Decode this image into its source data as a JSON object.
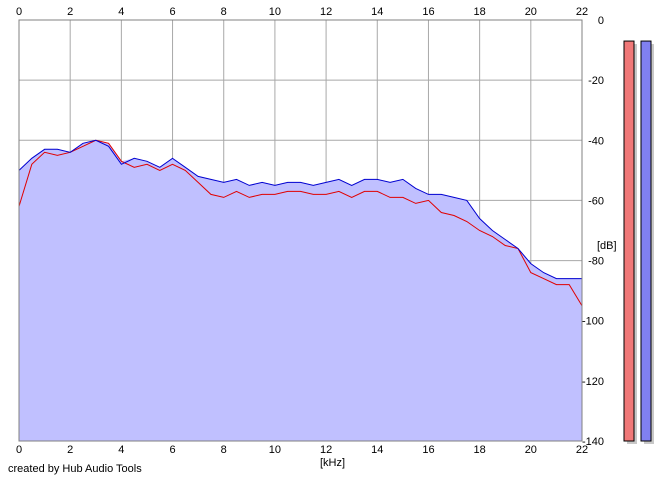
{
  "chart_data": {
    "type": "area",
    "xlabel": "[kHz]",
    "ylabel": "[dB]",
    "xlim": [
      0,
      22
    ],
    "ylim": [
      -140,
      0
    ],
    "xticks": [
      0,
      2,
      4,
      6,
      8,
      10,
      12,
      14,
      16,
      18,
      20,
      22
    ],
    "yticks": [
      0,
      -20,
      -40,
      -60,
      -80,
      -100,
      -120,
      -140
    ],
    "ytick_labels": [
      "0",
      "-20",
      "-40",
      "-60",
      "-80",
      "-100",
      "-120",
      "-140"
    ],
    "grid": true,
    "fill_color": "#c0c0ff",
    "series": [
      {
        "color": "#e00000",
        "x": [
          0,
          0.5,
          1,
          1.5,
          2,
          2.5,
          3,
          3.5,
          4,
          4.5,
          5,
          5.5,
          6,
          6.5,
          7,
          7.5,
          8,
          8.5,
          9,
          9.5,
          10,
          10.5,
          11,
          11.5,
          12,
          12.5,
          13,
          13.5,
          14,
          14.5,
          15,
          15.5,
          16,
          16.5,
          17,
          17.5,
          18,
          18.5,
          19,
          19.5,
          20,
          20.5,
          21,
          21.5,
          22
        ],
        "values": [
          -62,
          -48,
          -44,
          -45,
          -44,
          -42,
          -40,
          -41,
          -47,
          -49,
          -48,
          -50,
          -48,
          -50,
          -54,
          -58,
          -59,
          -57,
          -59,
          -58,
          -58,
          -57,
          -57,
          -58,
          -58,
          -57,
          -59,
          -57,
          -57,
          -59,
          -59,
          -61,
          -60,
          -64,
          -65,
          -67,
          -70,
          -72,
          -75,
          -76,
          -84,
          -86,
          -88,
          -88,
          -95
        ]
      },
      {
        "color": "#0000d0",
        "x": [
          0,
          0.5,
          1,
          1.5,
          2,
          2.5,
          3,
          3.5,
          4,
          4.5,
          5,
          5.5,
          6,
          6.5,
          7,
          7.5,
          8,
          8.5,
          9,
          9.5,
          10,
          10.5,
          11,
          11.5,
          12,
          12.5,
          13,
          13.5,
          14,
          14.5,
          15,
          15.5,
          16,
          16.5,
          17,
          17.5,
          18,
          18.5,
          19,
          19.5,
          20,
          20.5,
          21,
          21.5,
          22
        ],
        "values": [
          -50,
          -46,
          -43,
          -43,
          -44,
          -41,
          -40,
          -42,
          -48,
          -46,
          -47,
          -49,
          -46,
          -49,
          -52,
          -53,
          -54,
          -53,
          -55,
          -54,
          -55,
          -54,
          -54,
          -55,
          -54,
          -53,
          -55,
          -53,
          -53,
          -54,
          -53,
          -56,
          -58,
          -58,
          -59,
          -60,
          -66,
          -70,
          -73,
          -76,
          -81,
          -84,
          -86,
          -86,
          -86
        ]
      }
    ],
    "meters": [
      {
        "color": "#f07878",
        "value": -7
      },
      {
        "color": "#8080f0",
        "value": -7
      }
    ]
  },
  "footer": {
    "credit": "created by Hub Audio Tools"
  }
}
